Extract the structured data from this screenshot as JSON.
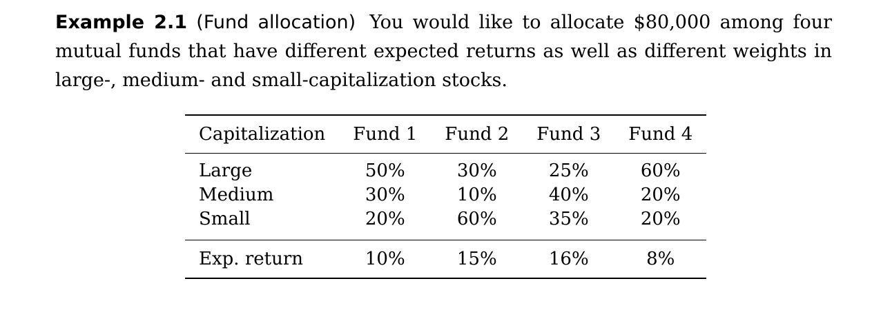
{
  "example": {
    "label": "Example 2.1",
    "paren_title": "(Fund allocation)",
    "text": "You would like to allocate $80,000 among four mutual funds that have different expected returns as well as different weights in large-, medium- and small-capitalization stocks."
  },
  "table": {
    "headers": [
      "Capitalization",
      "Fund 1",
      "Fund 2",
      "Fund 3",
      "Fund 4"
    ],
    "rows": [
      {
        "label": "Large",
        "values": [
          "50%",
          "30%",
          "25%",
          "60%"
        ]
      },
      {
        "label": "Medium",
        "values": [
          "30%",
          "10%",
          "40%",
          "20%"
        ]
      },
      {
        "label": "Small",
        "values": [
          "20%",
          "60%",
          "35%",
          "20%"
        ]
      }
    ],
    "footer": {
      "label": "Exp. return",
      "values": [
        "10%",
        "15%",
        "16%",
        "8%"
      ]
    }
  }
}
